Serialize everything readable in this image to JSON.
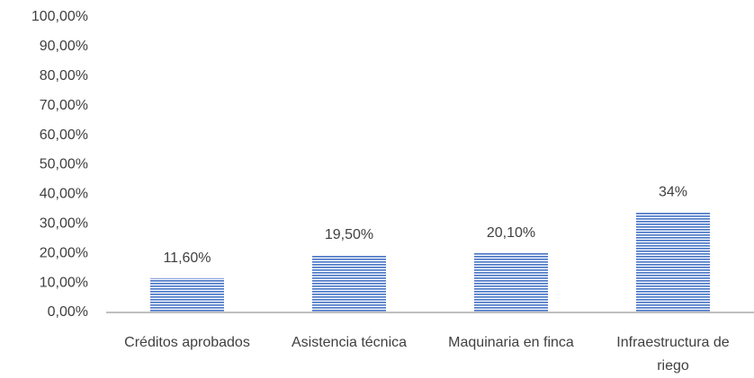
{
  "chart_data": {
    "type": "bar",
    "categories": [
      "Créditos aprobados",
      "Asistencia técnica",
      "Maquinaria en finca",
      "Infraestructura de riego"
    ],
    "values": [
      11.6,
      19.5,
      20.1,
      34
    ],
    "value_labels": [
      "11,60%",
      "19,50%",
      "20,10%",
      "34%"
    ],
    "color": "#4472c4",
    "ylim": [
      0,
      100
    ],
    "yticks": [
      {
        "value": 0,
        "label": "0,00%"
      },
      {
        "value": 10,
        "label": "10,00%"
      },
      {
        "value": 20,
        "label": "20,00%"
      },
      {
        "value": 30,
        "label": "30,00%"
      },
      {
        "value": 40,
        "label": "40,00%"
      },
      {
        "value": 50,
        "label": "50,00%"
      },
      {
        "value": 60,
        "label": "60,00%"
      },
      {
        "value": 70,
        "label": "70,00%"
      },
      {
        "value": 80,
        "label": "80,00%"
      },
      {
        "value": 90,
        "label": "90,00%"
      },
      {
        "value": 100,
        "label": "100,00%"
      }
    ],
    "grid": false
  }
}
